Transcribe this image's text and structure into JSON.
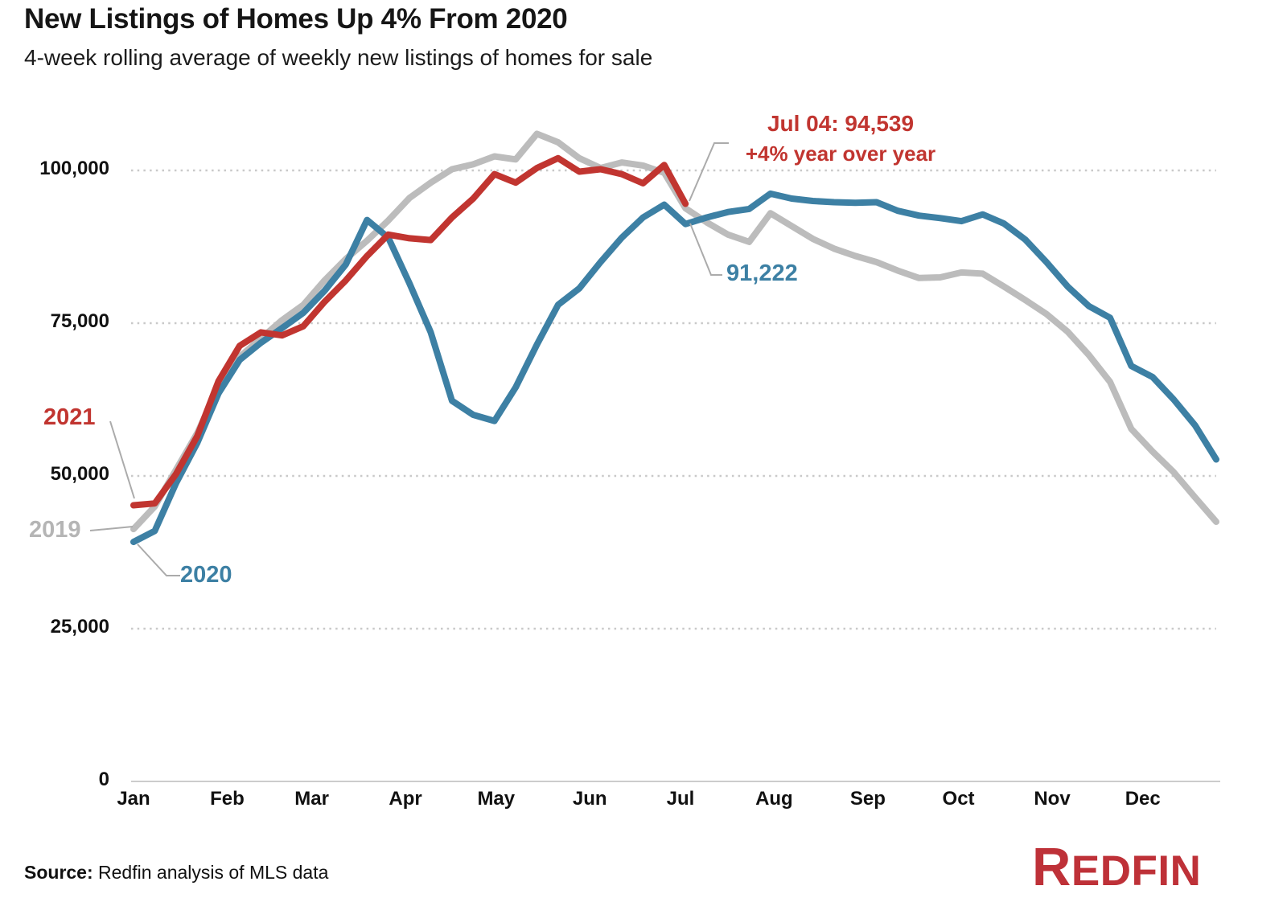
{
  "page": {
    "title": "New Listings of Homes Up 4% From 2020",
    "subtitle": "4-week rolling average of weekly new listings of homes for sale"
  },
  "source": {
    "label": "Source:",
    "text": " Redfin analysis of MLS data"
  },
  "logo": {
    "r": "R",
    "rest": "EDFIN",
    "color": "#BE3138"
  },
  "chart_data": {
    "type": "line",
    "title": "New Listings of Homes Up 4% From 2020",
    "subtitle": "4-week rolling average of weekly new listings of homes for sale",
    "xlabel": "",
    "ylabel": "",
    "frequency": "weekly",
    "ylim": [
      0,
      100000
    ],
    "grid": "dotted-horizontal",
    "legend_position": "inline-line-labels",
    "y_ticks": [
      {
        "value": 0,
        "label": "0"
      },
      {
        "value": 25000,
        "label": "25,000"
      },
      {
        "value": 50000,
        "label": "50,000"
      },
      {
        "value": 75000,
        "label": "75,000"
      },
      {
        "value": 100000,
        "label": "100,000"
      }
    ],
    "x_tick_labels": [
      "Jan",
      "Feb",
      "Mar",
      "Apr",
      "May",
      "Jun",
      "Jul",
      "Aug",
      "Sep",
      "Oct",
      "Nov",
      "Dec"
    ],
    "series": [
      {
        "name": "2019",
        "color": "#BCBCBC",
        "label_color": "#B5B5B5",
        "values": [
          41300,
          45000,
          51000,
          57000,
          64500,
          69500,
          72500,
          75500,
          78000,
          82000,
          85500,
          88500,
          91800,
          95500,
          98000,
          100200,
          101000,
          102300,
          101800,
          106000,
          104600,
          102000,
          100400,
          101300,
          100800,
          99600,
          93800,
          91500,
          89500,
          88300,
          93000,
          90900,
          88800,
          87200,
          86000,
          85000,
          83600,
          82400,
          82500,
          83300,
          83100,
          81000,
          78800,
          76500,
          73600,
          69800,
          65400,
          57700,
          54000,
          50600,
          46500,
          42500
        ]
      },
      {
        "name": "2020",
        "color": "#3D80A4",
        "label_color": "#3D80A4",
        "values": [
          39200,
          41000,
          48800,
          55400,
          63500,
          69000,
          71800,
          74200,
          76700,
          80300,
          84600,
          91900,
          89000,
          81500,
          73500,
          62300,
          60000,
          59000,
          64500,
          71500,
          78000,
          80700,
          85000,
          89000,
          92300,
          94400,
          91222,
          92300,
          93200,
          93700,
          96200,
          95400,
          95000,
          94800,
          94700,
          94800,
          93400,
          92600,
          92200,
          91700,
          92800,
          91300,
          88700,
          85000,
          81000,
          77800,
          75900,
          68000,
          66200,
          62500,
          58300,
          52700
        ]
      },
      {
        "name": "2021",
        "color": "#C13530",
        "label_color": "#C13530",
        "values": [
          45200,
          45500,
          50300,
          56500,
          65500,
          71300,
          73500,
          73000,
          74500,
          78500,
          82000,
          86000,
          89500,
          88900,
          88600,
          92300,
          95400,
          99400,
          98000,
          100400,
          102000,
          99800,
          100200,
          99400,
          97900,
          100900,
          94539
        ]
      }
    ],
    "annotations": {
      "peak_line1": "Jul 04: 94,539",
      "peak_line2": "+4% year over year",
      "peak_color": "#C13530",
      "blue_point_value": "91,222",
      "blue_point_color": "#3D80A4",
      "line_labels": {
        "red": "2021",
        "gray": "2019",
        "blue": "2020"
      }
    }
  }
}
